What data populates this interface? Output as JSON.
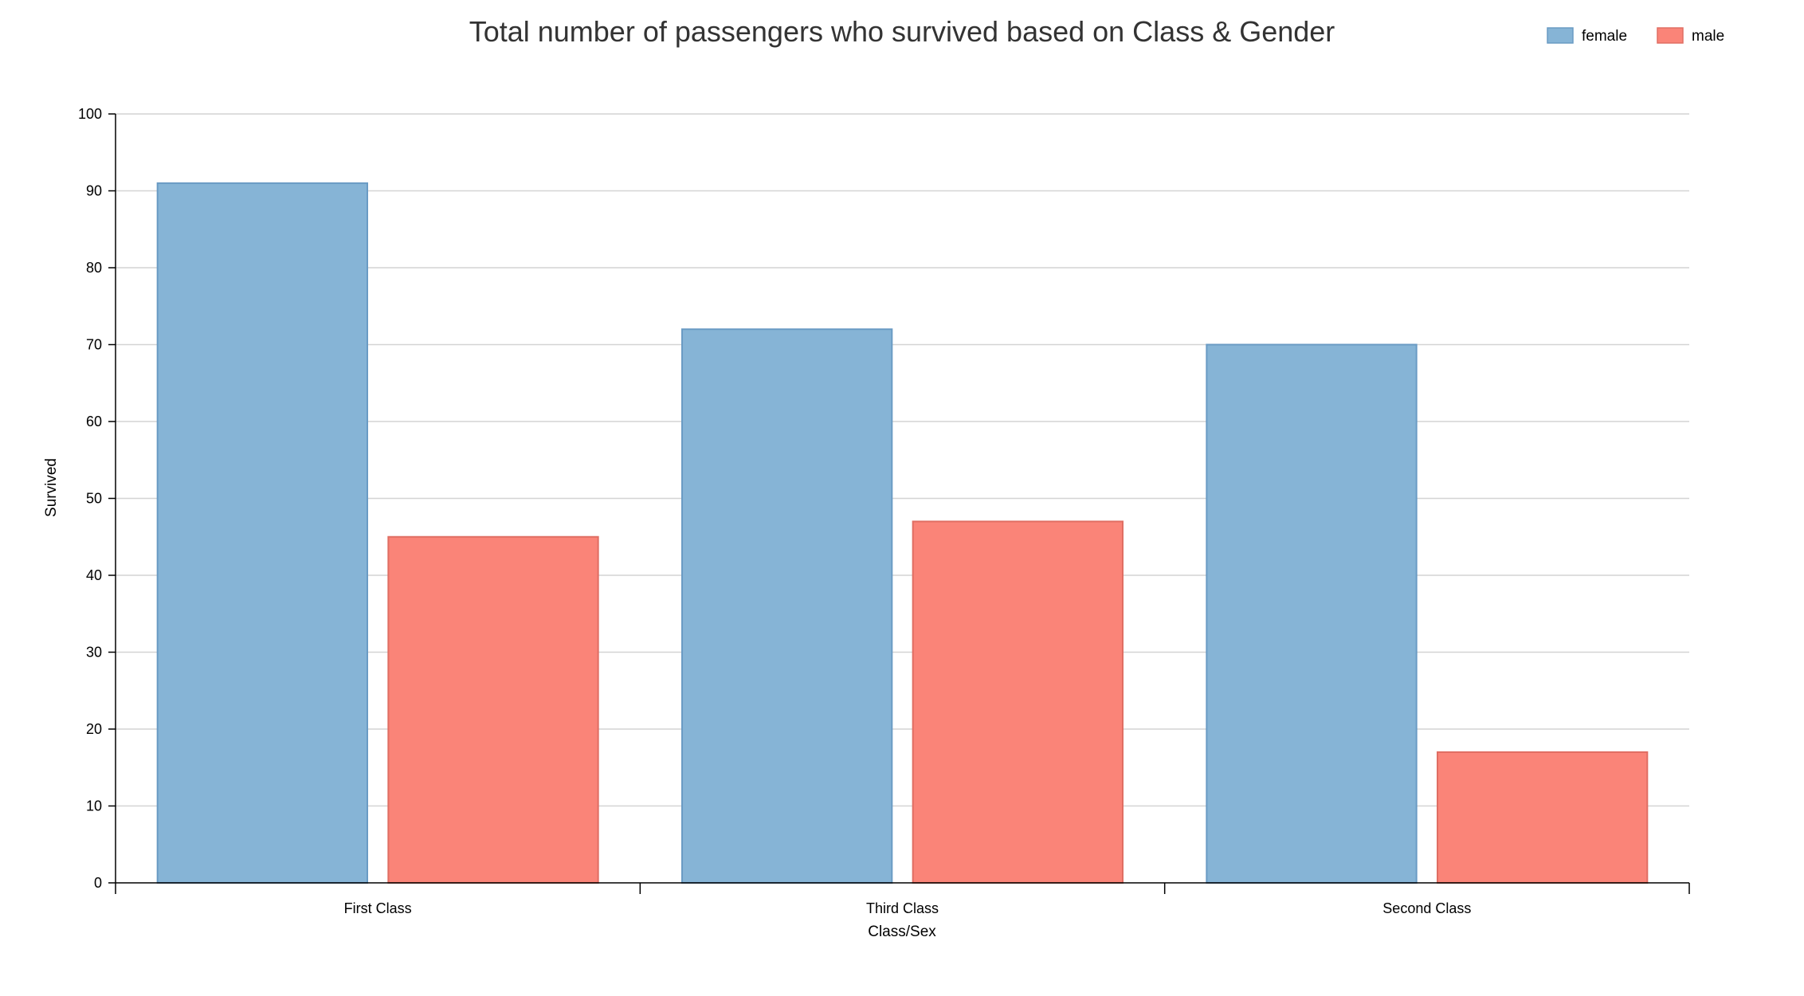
{
  "chart_data": {
    "type": "bar",
    "title": "Total number of passengers who survived based on Class & Gender",
    "xlabel": "Class/Sex",
    "ylabel": "Survived",
    "categories": [
      "First Class",
      "Third Class",
      "Second Class"
    ],
    "series": [
      {
        "name": "female",
        "values": [
          91,
          72,
          70
        ],
        "color": "#86b4d6",
        "stroke": "#6a9bc4"
      },
      {
        "name": "male",
        "values": [
          45,
          47,
          17
        ],
        "color": "#fa8478",
        "stroke": "#e06e63"
      }
    ],
    "ylim": [
      0,
      100
    ],
    "yticks": [
      0,
      10,
      20,
      30,
      40,
      50,
      60,
      70,
      80,
      90,
      100
    ],
    "grid": true,
    "legend_position": "top-right"
  }
}
